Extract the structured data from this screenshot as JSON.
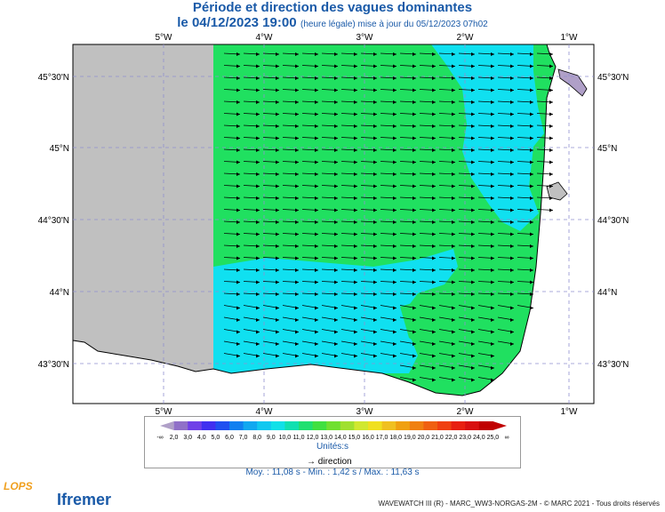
{
  "title": "Période et direction des vagues dominantes",
  "date": "le 04/12/2023 19:00",
  "update_note": "(heure légale) mise à jour du 05/12/2023 07h02",
  "lon_labels": [
    "5°W",
    "4°W",
    "3°W",
    "2°W",
    "1°W"
  ],
  "lat_labels": [
    "45°30'N",
    "45°N",
    "44°30'N",
    "44°N",
    "43°30'N"
  ],
  "colorbar": {
    "labels": [
      "-∞",
      "2,0",
      "3,0",
      "4,0",
      "5,0",
      "6,0",
      "7,0",
      "8,0",
      "9,0",
      "10,0",
      "11,0",
      "12,0",
      "13,0",
      "14,0",
      "15,0",
      "16,0",
      "17,0",
      "18,0",
      "19,0",
      "20,0",
      "21,0",
      "22,0",
      "23,0",
      "24,0",
      "25,0",
      "∞"
    ],
    "colors": [
      "#b0a0c8",
      "#9070c8",
      "#7040e8",
      "#4030f0",
      "#2050f0",
      "#1080f0",
      "#10a8f0",
      "#10c8f0",
      "#10e0e8",
      "#10e0b0",
      "#20e070",
      "#40e040",
      "#70e030",
      "#a0e030",
      "#d0e830",
      "#f0e020",
      "#f0c020",
      "#f0a010",
      "#f08010",
      "#f06010",
      "#f04010",
      "#e82010",
      "#d81010",
      "#c00000",
      "#c00000"
    ]
  },
  "units": "Unités:s",
  "direction_label": "direction",
  "stats": "Moy. : 11,08 s   -   Min. : 1,42 s / Max. : 11,63 s",
  "footer": "WAVEWATCH III (R) - MARC_WW3-NORGAS-2M - © MARC 2021 - Tous droits réservés",
  "logo_lops": "LOPS",
  "logo_ifremer": "Ifremer",
  "colors": {
    "land": "#ffffff",
    "nodata": "#c0c0c0",
    "green": "#20e060",
    "cyan": "#10e0f0",
    "grid": "#9090d0"
  }
}
